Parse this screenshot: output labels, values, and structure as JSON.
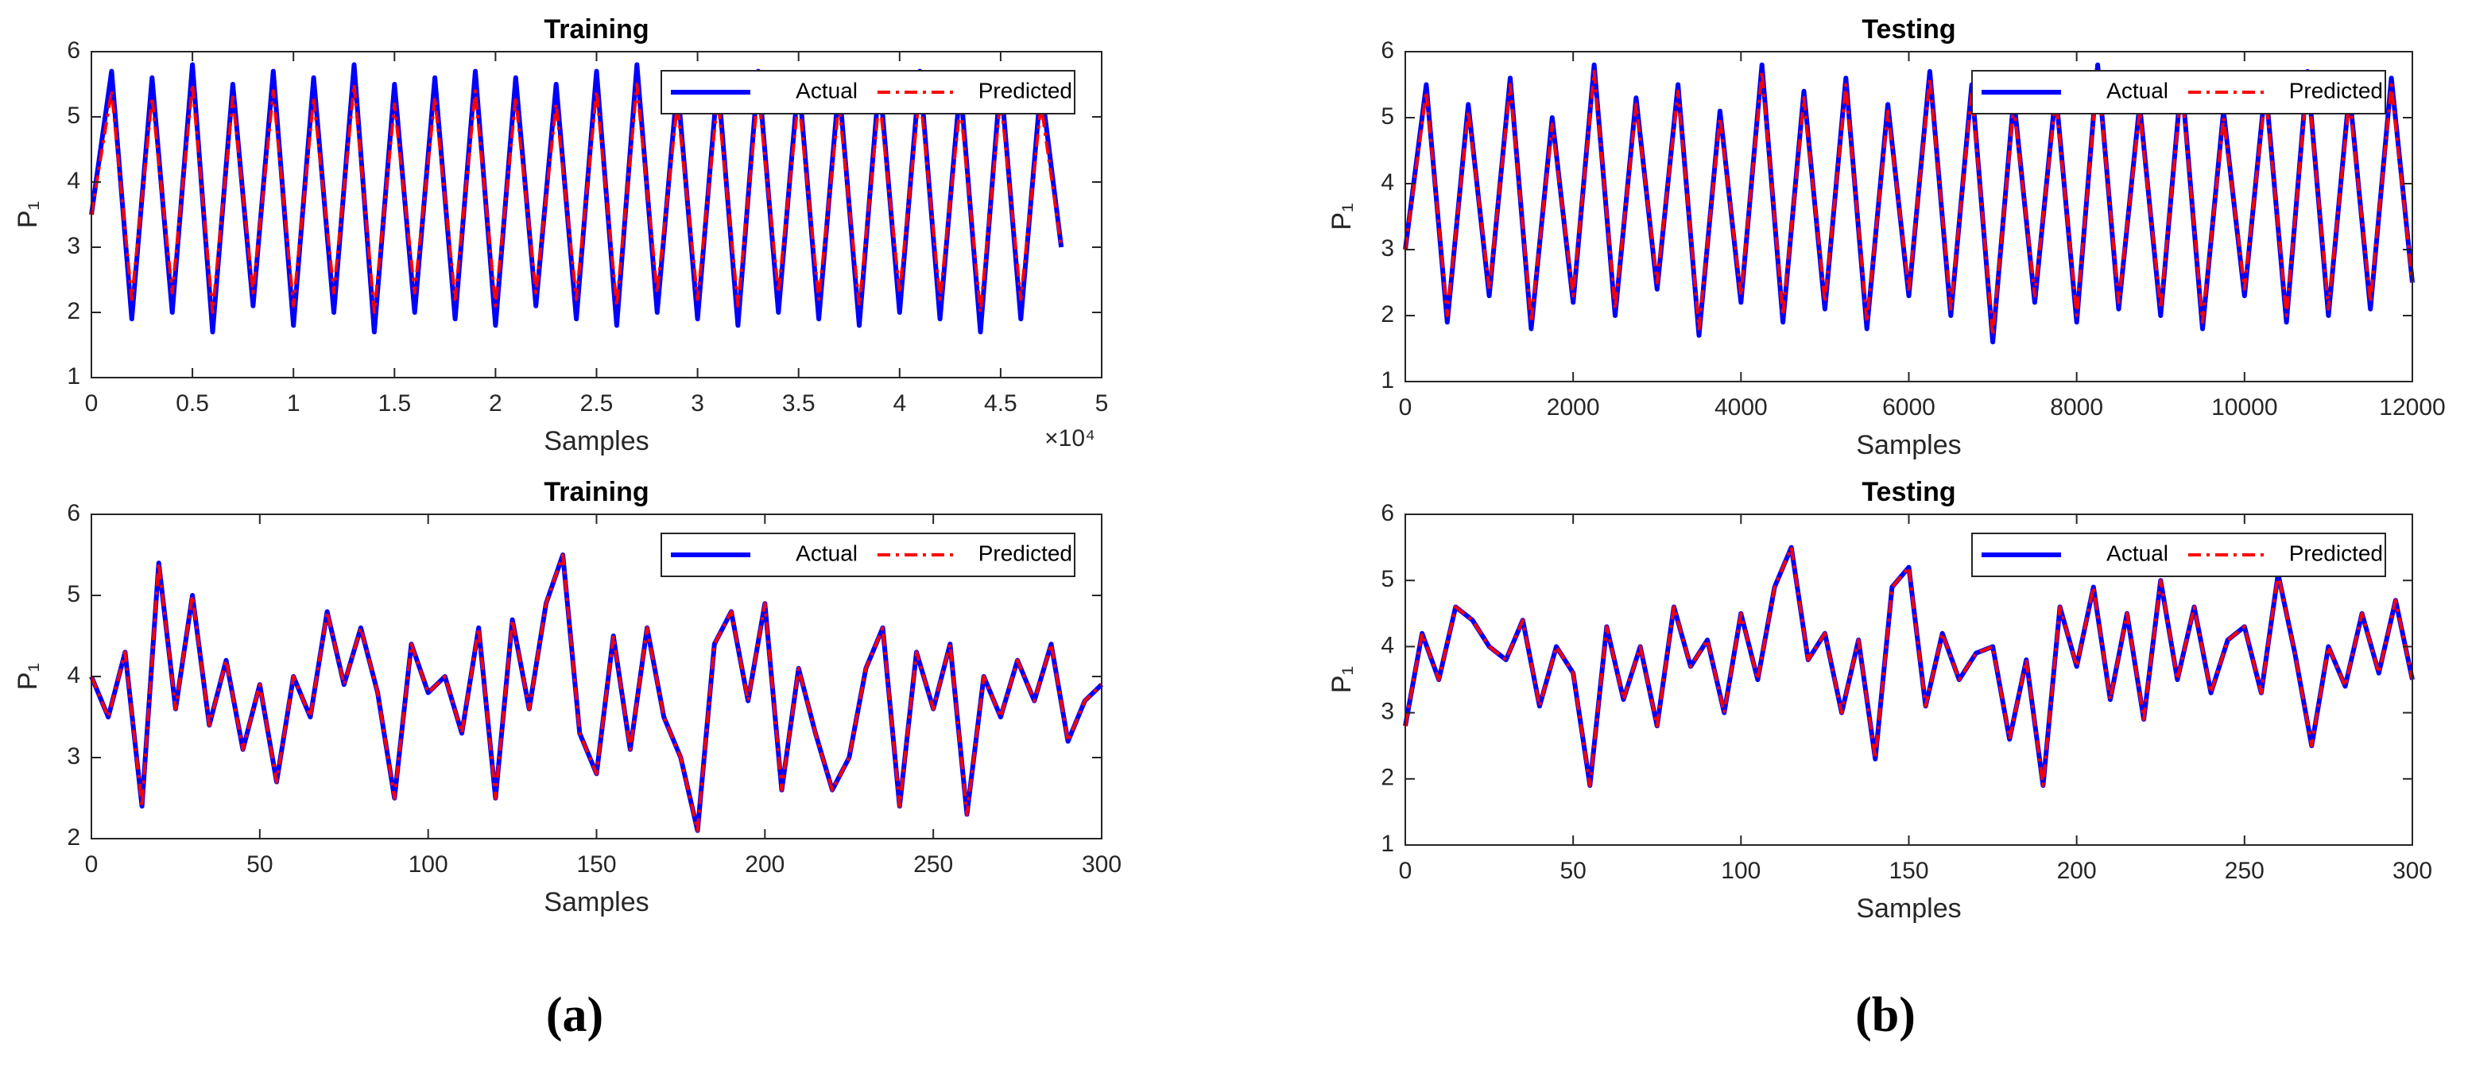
{
  "chart_data": [
    {
      "type": "line",
      "title": "Training",
      "xlabel": "Samples",
      "ylabel": "P₁",
      "x_offset_label": "×10⁴",
      "xlim": [
        0,
        50000
      ],
      "ylim": [
        1,
        6
      ],
      "xticks": [
        0,
        {
          "value": 5000,
          "label": "0.5"
        },
        {
          "value": 10000,
          "label": "1"
        },
        {
          "value": 15000,
          "label": "1.5"
        },
        {
          "value": 20000,
          "label": "2"
        },
        {
          "value": 25000,
          "label": "2.5"
        },
        {
          "value": 30000,
          "label": "3"
        },
        {
          "value": 35000,
          "label": "3.5"
        },
        {
          "value": 40000,
          "label": "4"
        },
        {
          "value": 45000,
          "label": "4.5"
        },
        {
          "value": 50000,
          "label": "5"
        }
      ],
      "yticks": [
        1,
        2,
        3,
        4,
        5,
        6
      ],
      "legend": "upper right",
      "x": [
        0,
        1000,
        2000,
        3000,
        4000,
        5000,
        6000,
        7000,
        8000,
        9000,
        10000,
        11000,
        12000,
        13000,
        14000,
        15000,
        16000,
        17000,
        18000,
        19000,
        20000,
        21000,
        22000,
        23000,
        24000,
        25000,
        26000,
        27000,
        28000,
        29000,
        30000,
        31000,
        32000,
        33000,
        34000,
        35000,
        36000,
        37000,
        38000,
        39000,
        40000,
        41000,
        42000,
        43000,
        44000,
        45000,
        46000,
        47000,
        48000
      ],
      "series": [
        {
          "name": "Actual",
          "color": "#0000ff",
          "linestyle": "solid",
          "values": [
            3.5,
            5.7,
            1.9,
            5.6,
            2.0,
            5.8,
            1.7,
            5.5,
            2.1,
            5.7,
            1.8,
            5.6,
            2.0,
            5.8,
            1.7,
            5.5,
            2.0,
            5.6,
            1.9,
            5.7,
            1.8,
            5.6,
            2.1,
            5.5,
            1.9,
            5.7,
            1.8,
            5.8,
            2.0,
            5.5,
            1.9,
            5.6,
            1.8,
            5.7,
            2.0,
            5.6,
            1.9,
            5.5,
            1.8,
            5.6,
            2.0,
            5.7,
            1.9,
            5.5,
            1.7,
            5.6,
            1.9,
            5.5,
            3.0
          ]
        },
        {
          "name": "Predicted",
          "color": "#ff0000",
          "linestyle": "dashdot",
          "values": [
            3.5,
            5.4,
            2.2,
            5.3,
            2.3,
            5.5,
            2.0,
            5.3,
            2.3,
            5.4,
            2.1,
            5.3,
            2.3,
            5.5,
            2.0,
            5.2,
            2.3,
            5.3,
            2.2,
            5.4,
            2.1,
            5.3,
            2.3,
            5.2,
            2.2,
            5.4,
            2.1,
            5.5,
            2.3,
            5.2,
            2.2,
            5.3,
            2.1,
            5.4,
            2.3,
            5.3,
            2.2,
            5.2,
            2.1,
            5.3,
            2.3,
            5.4,
            2.2,
            5.2,
            2.0,
            5.3,
            2.2,
            5.2,
            3.0
          ]
        }
      ]
    },
    {
      "type": "line",
      "title": "Testing",
      "xlabel": "Samples",
      "ylabel": "P₁",
      "xlim": [
        0,
        12000
      ],
      "ylim": [
        1,
        6
      ],
      "xticks": [
        0,
        2000,
        4000,
        6000,
        8000,
        10000,
        12000
      ],
      "yticks": [
        1,
        2,
        3,
        4,
        5,
        6
      ],
      "legend": "upper right",
      "x": [
        0,
        250,
        500,
        750,
        1000,
        1250,
        1500,
        1750,
        2000,
        2250,
        2500,
        2750,
        3000,
        3250,
        3500,
        3750,
        4000,
        4250,
        4500,
        4750,
        5000,
        5250,
        5500,
        5750,
        6000,
        6250,
        6500,
        6750,
        7000,
        7250,
        7500,
        7750,
        8000,
        8250,
        8500,
        8750,
        9000,
        9250,
        9500,
        9750,
        10000,
        10250,
        10500,
        10750,
        11000,
        11250,
        11500,
        11750,
        12000
      ],
      "series": [
        {
          "name": "Actual",
          "color": "#0000ff",
          "linestyle": "solid",
          "values": [
            3.0,
            5.5,
            1.9,
            5.2,
            2.3,
            5.6,
            1.8,
            5.0,
            2.2,
            5.8,
            2.0,
            5.3,
            2.4,
            5.5,
            1.7,
            5.1,
            2.2,
            5.8,
            1.9,
            5.4,
            2.1,
            5.6,
            1.8,
            5.2,
            2.3,
            5.7,
            2.0,
            5.5,
            1.6,
            5.3,
            2.2,
            5.4,
            1.9,
            5.8,
            2.1,
            5.2,
            2.0,
            5.6,
            1.8,
            5.1,
            2.3,
            5.5,
            1.9,
            5.7,
            2.0,
            5.4,
            2.1,
            5.6,
            2.5
          ]
        },
        {
          "name": "Predicted",
          "color": "#ff0000",
          "linestyle": "dashdot",
          "values": [
            3.0,
            5.4,
            2.0,
            5.1,
            2.4,
            5.5,
            1.9,
            4.9,
            2.3,
            5.7,
            2.1,
            5.2,
            2.5,
            5.4,
            1.8,
            5.0,
            2.3,
            5.7,
            2.0,
            5.3,
            2.2,
            5.5,
            1.9,
            5.1,
            2.4,
            5.6,
            2.1,
            5.4,
            1.7,
            5.2,
            2.3,
            5.3,
            2.0,
            5.7,
            2.2,
            5.1,
            2.1,
            5.5,
            1.9,
            5.0,
            2.4,
            5.4,
            2.0,
            5.6,
            2.1,
            5.3,
            2.2,
            5.5,
            2.5
          ]
        }
      ]
    },
    {
      "type": "line",
      "title": "Training",
      "xlabel": "Samples",
      "ylabel": "P₁",
      "xlim": [
        0,
        300
      ],
      "ylim": [
        2,
        6
      ],
      "xticks": [
        0,
        50,
        100,
        150,
        200,
        250,
        300
      ],
      "yticks": [
        2,
        3,
        4,
        5,
        6
      ],
      "legend": "upper right",
      "x": [
        0,
        5,
        10,
        15,
        20,
        25,
        30,
        35,
        40,
        45,
        50,
        55,
        60,
        65,
        70,
        75,
        80,
        85,
        90,
        95,
        100,
        105,
        110,
        115,
        120,
        125,
        130,
        135,
        140,
        145,
        150,
        155,
        160,
        165,
        170,
        175,
        180,
        185,
        190,
        195,
        200,
        205,
        210,
        215,
        220,
        225,
        230,
        235,
        240,
        245,
        250,
        255,
        260,
        265,
        270,
        275,
        280,
        285,
        290,
        295,
        300
      ],
      "series": [
        {
          "name": "Actual",
          "color": "#0000ff",
          "linestyle": "solid",
          "values": [
            4.0,
            3.5,
            4.3,
            2.4,
            5.4,
            3.6,
            5.0,
            3.4,
            4.2,
            3.1,
            3.9,
            2.7,
            4.0,
            3.5,
            4.8,
            3.9,
            4.6,
            3.8,
            2.5,
            4.4,
            3.8,
            4.0,
            3.3,
            4.6,
            2.5,
            4.7,
            3.6,
            4.9,
            5.5,
            3.3,
            2.8,
            4.5,
            3.1,
            4.6,
            3.5,
            3.0,
            2.1,
            4.4,
            4.8,
            3.7,
            4.9,
            2.6,
            4.1,
            3.3,
            2.6,
            3.0,
            4.1,
            4.6,
            2.4,
            4.3,
            3.6,
            4.4,
            2.3,
            4.0,
            3.5,
            4.2,
            3.7,
            4.4,
            3.2,
            3.7,
            3.9
          ]
        },
        {
          "name": "Predicted",
          "color": "#ff0000",
          "linestyle": "dashdot",
          "values": [
            4.0,
            3.5,
            4.3,
            2.4,
            5.4,
            3.6,
            5.0,
            3.4,
            4.2,
            3.1,
            3.9,
            2.7,
            4.0,
            3.5,
            4.8,
            3.9,
            4.6,
            3.8,
            2.5,
            4.4,
            3.8,
            4.0,
            3.3,
            4.6,
            2.5,
            4.7,
            3.6,
            4.9,
            5.5,
            3.3,
            2.8,
            4.5,
            3.1,
            4.6,
            3.5,
            3.0,
            2.1,
            4.4,
            4.8,
            3.7,
            4.9,
            2.6,
            4.1,
            3.3,
            2.6,
            3.0,
            4.1,
            4.6,
            2.4,
            4.3,
            3.6,
            4.4,
            2.3,
            4.0,
            3.5,
            4.2,
            3.7,
            4.4,
            3.2,
            3.7,
            3.9
          ]
        }
      ]
    },
    {
      "type": "line",
      "title": "Testing",
      "xlabel": "Samples",
      "ylabel": "P₁",
      "xlim": [
        0,
        300
      ],
      "ylim": [
        1,
        6
      ],
      "xticks": [
        0,
        50,
        100,
        150,
        200,
        250,
        300
      ],
      "yticks": [
        1,
        2,
        3,
        4,
        5,
        6
      ],
      "legend": "upper right",
      "x": [
        0,
        5,
        10,
        15,
        20,
        25,
        30,
        35,
        40,
        45,
        50,
        55,
        60,
        65,
        70,
        75,
        80,
        85,
        90,
        95,
        100,
        105,
        110,
        115,
        120,
        125,
        130,
        135,
        140,
        145,
        150,
        155,
        160,
        165,
        170,
        175,
        180,
        185,
        190,
        195,
        200,
        205,
        210,
        215,
        220,
        225,
        230,
        235,
        240,
        245,
        250,
        255,
        260,
        265,
        270,
        275,
        280,
        285,
        290,
        295,
        300
      ],
      "series": [
        {
          "name": "Actual",
          "color": "#0000ff",
          "linestyle": "solid",
          "values": [
            2.8,
            4.2,
            3.5,
            4.6,
            4.4,
            4.0,
            3.8,
            4.4,
            3.1,
            4.0,
            3.6,
            1.9,
            4.3,
            3.2,
            4.0,
            2.8,
            4.6,
            3.7,
            4.1,
            3.0,
            4.5,
            3.5,
            4.9,
            5.5,
            3.8,
            4.2,
            3.0,
            4.1,
            2.3,
            4.9,
            5.2,
            3.1,
            4.2,
            3.5,
            3.9,
            4.0,
            2.6,
            3.8,
            1.9,
            4.6,
            3.7,
            4.9,
            3.2,
            4.5,
            2.9,
            5.0,
            3.5,
            4.6,
            3.3,
            4.1,
            4.3,
            3.3,
            5.1,
            3.9,
            2.5,
            4.0,
            3.4,
            4.5,
            3.6,
            4.7,
            3.5
          ]
        },
        {
          "name": "Predicted",
          "color": "#ff0000",
          "linestyle": "dashdot",
          "values": [
            2.8,
            4.2,
            3.5,
            4.6,
            4.4,
            4.0,
            3.8,
            4.4,
            3.1,
            4.0,
            3.6,
            1.9,
            4.3,
            3.2,
            4.0,
            2.8,
            4.6,
            3.7,
            4.1,
            3.0,
            4.5,
            3.5,
            4.9,
            5.5,
            3.8,
            4.2,
            3.0,
            4.1,
            2.3,
            4.9,
            5.2,
            3.1,
            4.2,
            3.5,
            3.9,
            4.0,
            2.6,
            3.8,
            1.9,
            4.6,
            3.7,
            4.9,
            3.2,
            4.5,
            2.9,
            5.0,
            3.5,
            4.6,
            3.3,
            4.1,
            4.3,
            3.3,
            5.1,
            3.9,
            2.5,
            4.0,
            3.4,
            4.5,
            3.6,
            4.7,
            3.5
          ]
        }
      ]
    }
  ],
  "captions": [
    "(a)",
    "(b)"
  ]
}
